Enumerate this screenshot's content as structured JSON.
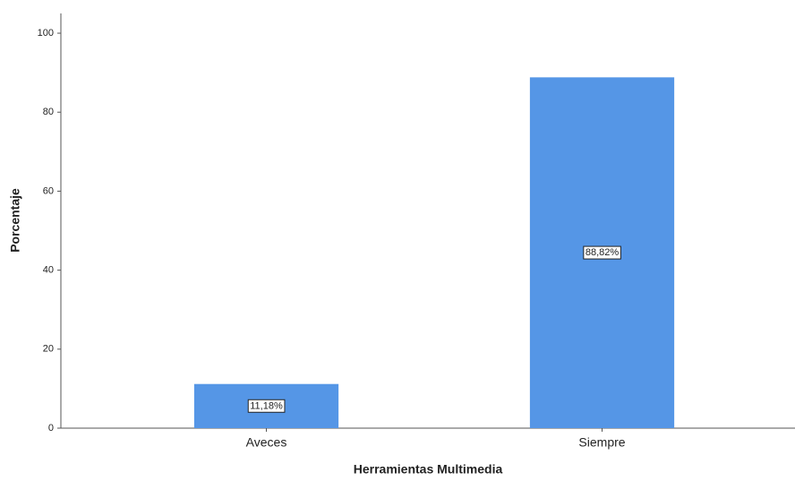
{
  "chart_data": {
    "type": "bar",
    "x_label": "Herramientas Multimedia",
    "y_label": "Porcentaje",
    "categories": [
      "Aveces",
      "Siempre"
    ],
    "values": [
      11.18,
      88.82
    ],
    "value_labels": [
      "11,18%",
      "88,82%"
    ],
    "color": "#5596e6",
    "ylim": [
      0,
      105
    ],
    "yticks": [
      0,
      20,
      40,
      60,
      80,
      100
    ],
    "grid": false
  }
}
